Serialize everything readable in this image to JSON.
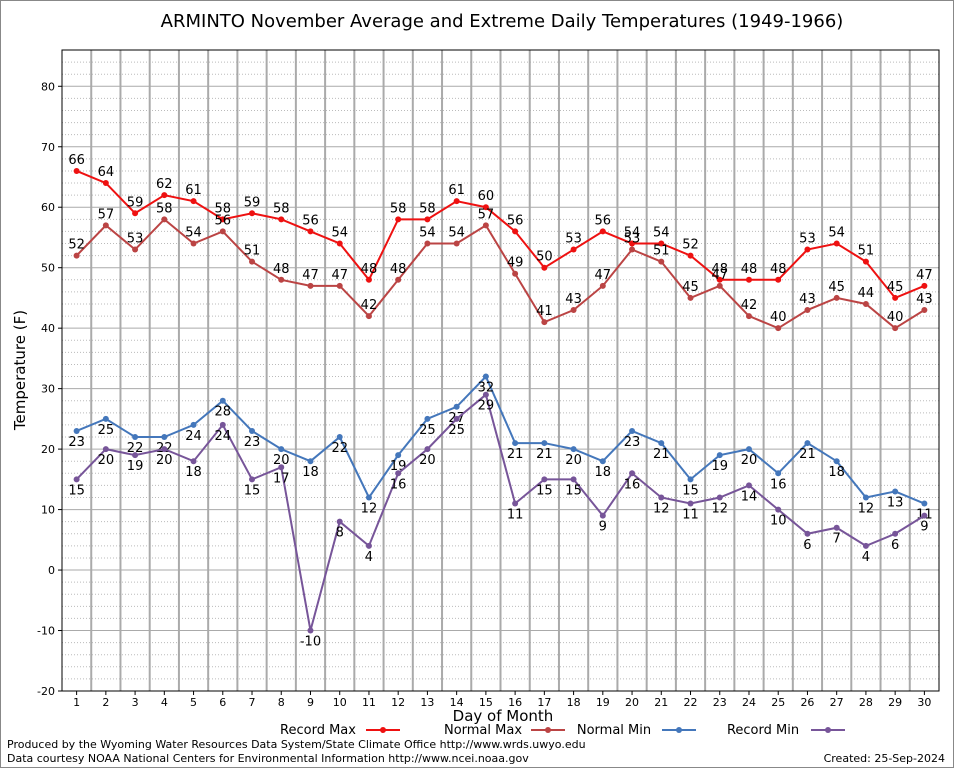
{
  "chart_data": {
    "type": "line",
    "title": "ARMINTO November Average and Extreme Daily Temperatures (1949-1966)",
    "xlabel": "Day of Month",
    "ylabel": "Temperature (F)",
    "ylim": [
      -20,
      86
    ],
    "yticks": [
      -20,
      -10,
      0,
      10,
      20,
      30,
      40,
      50,
      60,
      70,
      80
    ],
    "x": [
      1,
      2,
      3,
      4,
      5,
      6,
      7,
      8,
      9,
      10,
      11,
      12,
      13,
      14,
      15,
      16,
      17,
      18,
      19,
      20,
      21,
      22,
      23,
      24,
      25,
      26,
      27,
      28,
      29,
      30
    ],
    "grid": true,
    "legend_placement": "bottom",
    "series": [
      {
        "name": "Record Max",
        "color": "#ee1111",
        "label_pos": "above",
        "values": [
          66,
          64,
          59,
          62,
          61,
          58,
          59,
          58,
          56,
          54,
          48,
          58,
          58,
          61,
          60,
          56,
          50,
          53,
          56,
          54,
          54,
          52,
          48,
          48,
          48,
          53,
          54,
          51,
          45,
          47
        ]
      },
      {
        "name": "Normal Max",
        "color": "#bb4444",
        "label_pos": "above",
        "values": [
          52,
          57,
          53,
          58,
          54,
          56,
          51,
          48,
          47,
          47,
          42,
          48,
          54,
          54,
          57,
          49,
          41,
          43,
          47,
          53,
          51,
          45,
          47,
          42,
          40,
          43,
          45,
          44,
          40,
          43
        ]
      },
      {
        "name": "Normal Min",
        "color": "#4477bb",
        "label_pos": "below",
        "values": [
          23,
          25,
          22,
          22,
          24,
          28,
          23,
          20,
          18,
          22,
          12,
          19,
          25,
          27,
          32,
          21,
          21,
          20,
          18,
          23,
          21,
          15,
          19,
          20,
          16,
          21,
          18,
          12,
          13,
          11
        ]
      },
      {
        "name": "Record Min",
        "color": "#775599",
        "label_pos": "below",
        "values": [
          15,
          20,
          19,
          20,
          18,
          24,
          15,
          17,
          -10,
          8,
          4,
          16,
          20,
          25,
          29,
          11,
          15,
          15,
          9,
          16,
          12,
          11,
          12,
          14,
          10,
          6,
          7,
          4,
          6,
          9
        ]
      }
    ]
  },
  "footer": {
    "line1": "Produced by the Wyoming Water Resources Data System/State Climate Office http://www.wrds.uwyo.edu",
    "line2": "Data courtesy NOAA National Centers for Environmental Information http://www.ncei.noaa.gov",
    "created": "Created:  25-Sep-2024"
  }
}
